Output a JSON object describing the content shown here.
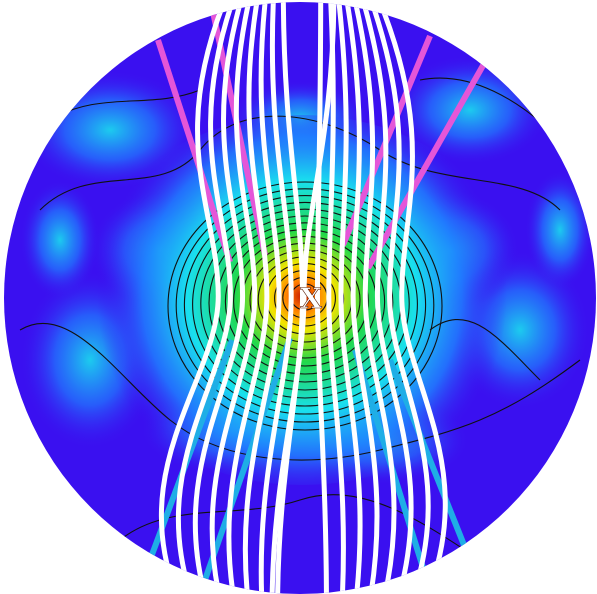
{
  "figure": {
    "center_marker": "X",
    "colors": {
      "background": "#ffffff",
      "field_low": "#3a10f0",
      "field_mid_blue": "#1f7fff",
      "field_cyan": "#19e0ee",
      "field_green": "#22d84a",
      "field_yellow": "#f2e400",
      "field_orange": "#ff7a00",
      "field_peak": "#c81a00",
      "field_lines": "#ffffff",
      "inflow_tracks": "#e456d8",
      "outflow_tracks": "#1faee6",
      "contours": "#111111"
    },
    "icons": [
      "x-marker-icon"
    ]
  }
}
